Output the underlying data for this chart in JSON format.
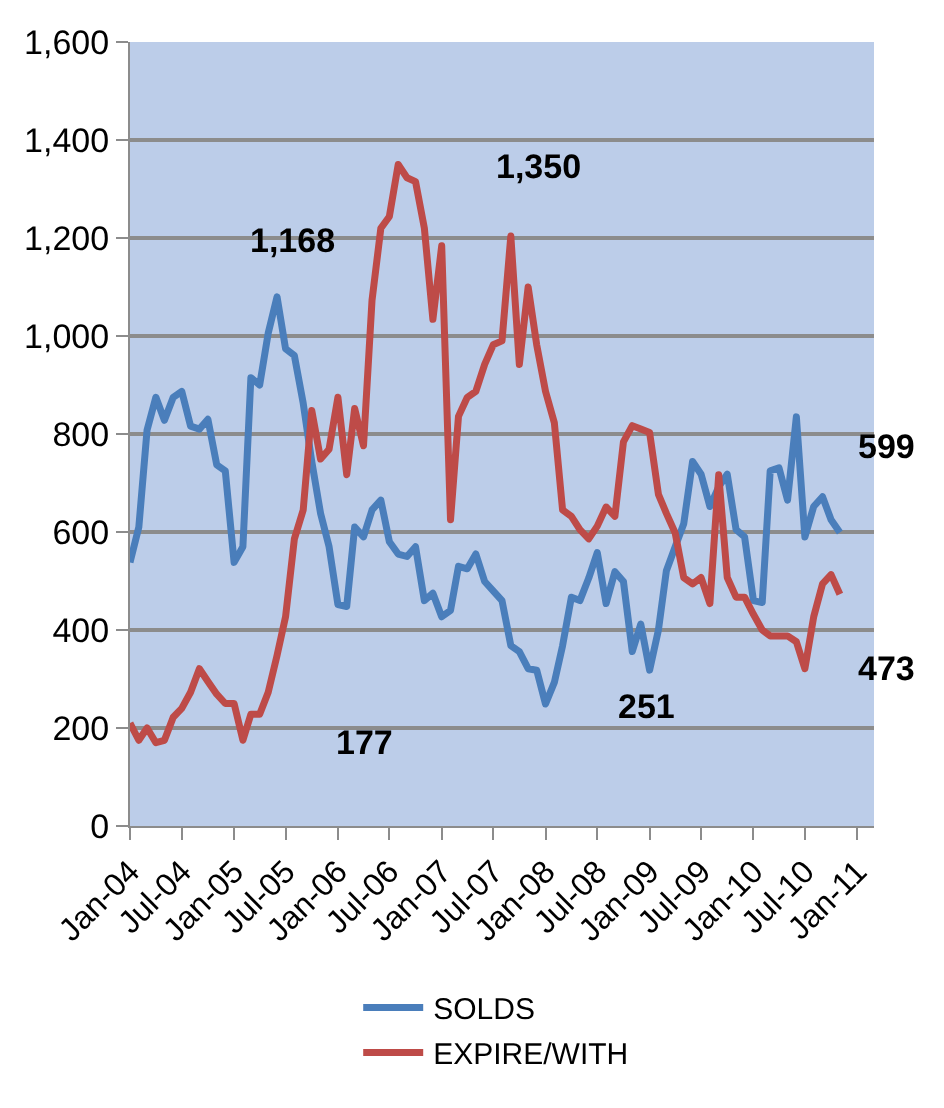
{
  "chart_data": {
    "type": "line",
    "x": [
      "2004-01",
      "2004-02",
      "2004-03",
      "2004-04",
      "2004-05",
      "2004-06",
      "2004-07",
      "2004-08",
      "2004-09",
      "2004-10",
      "2004-11",
      "2004-12",
      "2005-01",
      "2005-02",
      "2005-03",
      "2005-04",
      "2005-05",
      "2005-06",
      "2005-07",
      "2005-08",
      "2005-09",
      "2005-10",
      "2005-11",
      "2005-12",
      "2006-01",
      "2006-02",
      "2006-03",
      "2006-04",
      "2006-05",
      "2006-06",
      "2006-07",
      "2006-08",
      "2006-09",
      "2006-10",
      "2006-11",
      "2006-12",
      "2007-01",
      "2007-02",
      "2007-03",
      "2007-04",
      "2007-05",
      "2007-06",
      "2007-07",
      "2007-08",
      "2007-09",
      "2007-10",
      "2007-11",
      "2007-12",
      "2008-01",
      "2008-02",
      "2008-03",
      "2008-04",
      "2008-05",
      "2008-06",
      "2008-07",
      "2008-08",
      "2008-09",
      "2008-10",
      "2008-11",
      "2008-12",
      "2009-01",
      "2009-02",
      "2009-03",
      "2009-04",
      "2009-05",
      "2009-06",
      "2009-07",
      "2009-08",
      "2009-09",
      "2009-10",
      "2009-11",
      "2009-12",
      "2010-01",
      "2010-02",
      "2010-03",
      "2010-04",
      "2010-05",
      "2010-06",
      "2010-07",
      "2010-08",
      "2010-09",
      "2010-10",
      "2010-11"
    ],
    "series": [
      {
        "name": "SOLDS",
        "color": "#4a7ebb",
        "values": [
          538,
          610,
          808,
          875,
          828,
          875,
          887,
          816,
          810,
          830,
          737,
          725,
          538,
          570,
          915,
          900,
          1006,
          1080,
          974,
          960,
          863,
          744,
          638,
          570,
          452,
          448,
          610,
          590,
          645,
          665,
          580,
          555,
          550,
          570,
          460,
          475,
          427,
          440,
          530,
          525,
          555,
          499,
          480,
          460,
          368,
          356,
          321,
          318,
          249,
          293,
          368,
          467,
          460,
          506,
          558,
          454,
          519,
          499,
          356,
          412,
          318,
          400,
          521,
          570,
          617,
          744,
          718,
          652,
          692,
          718,
          605,
          590,
          460,
          456,
          725,
          731,
          665,
          835,
          590,
          652,
          672,
          625,
          599
        ]
      },
      {
        "name": "EXPIRE/WITH",
        "color": "#be4b48",
        "values": [
          210,
          175,
          200,
          170,
          175,
          222,
          240,
          273,
          321,
          295,
          269,
          250,
          250,
          175,
          228,
          228,
          273,
          348,
          427,
          586,
          645,
          848,
          749,
          769,
          875,
          717,
          852,
          776,
          1073,
          1220,
          1244,
          1350,
          1323,
          1315,
          1220,
          1034,
          1184,
          625,
          836,
          875,
          887,
          942,
          982,
          990,
          1204,
          942,
          1100,
          982,
          887,
          823,
          645,
          632,
          605,
          586,
          612,
          651,
          632,
          784,
          817,
          810,
          803,
          677,
          638,
          598,
          507,
          494,
          507,
          454,
          717,
          507,
          467,
          467,
          432,
          400,
          388,
          388,
          388,
          376,
          321,
          427,
          494,
          513,
          473
        ]
      }
    ],
    "xlim": [
      "2004-01",
      "2011-03"
    ],
    "xticks": [
      {
        "value": "2004-01",
        "label": "Jan-04"
      },
      {
        "value": "2004-07",
        "label": "Jul-04"
      },
      {
        "value": "2005-01",
        "label": "Jan-05"
      },
      {
        "value": "2005-07",
        "label": "Jul-05"
      },
      {
        "value": "2006-01",
        "label": "Jan-06"
      },
      {
        "value": "2006-07",
        "label": "Jul-06"
      },
      {
        "value": "2007-01",
        "label": "Jan-07"
      },
      {
        "value": "2007-07",
        "label": "Jul-07"
      },
      {
        "value": "2008-01",
        "label": "Jan-08"
      },
      {
        "value": "2008-07",
        "label": "Jul-08"
      },
      {
        "value": "2009-01",
        "label": "Jan-09"
      },
      {
        "value": "2009-07",
        "label": "Jul-09"
      },
      {
        "value": "2010-01",
        "label": "Jan-10"
      },
      {
        "value": "2010-07",
        "label": "Jul-10"
      },
      {
        "value": "2011-01",
        "label": "Jan-11"
      }
    ],
    "ylim": [
      0,
      1600
    ],
    "yticks": [
      0,
      200,
      400,
      600,
      800,
      {
        "value": 1000,
        "label": "1,000"
      },
      {
        "value": 1200,
        "label": "1,200"
      },
      {
        "value": 1400,
        "label": "1,400"
      },
      {
        "value": 1600,
        "label": "1,600"
      }
    ],
    "grid": "y",
    "legend": "bottom",
    "marker": "none",
    "line_style": "solid",
    "annotations": [
      "1,168",
      "1,350",
      "177",
      "251",
      "599",
      "473"
    ]
  }
}
